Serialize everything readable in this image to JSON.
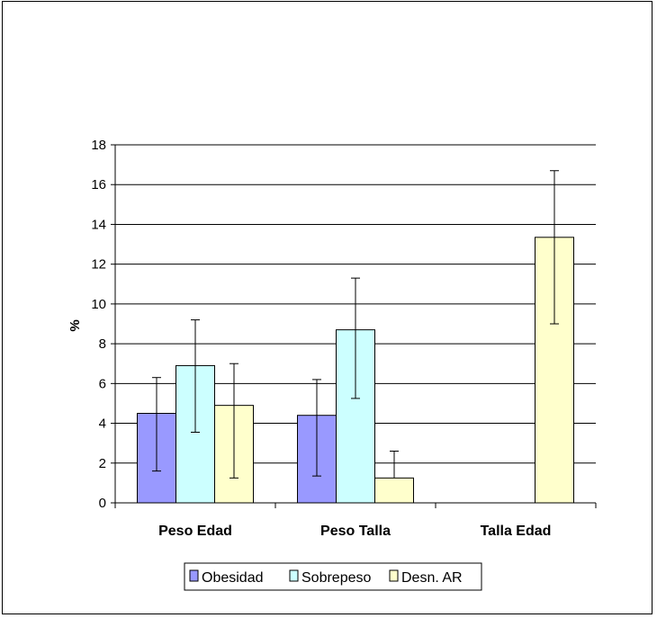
{
  "chart_data": {
    "type": "bar",
    "title": "",
    "xlabel": "",
    "ylabel": "%",
    "ylim": [
      0,
      18
    ],
    "yticks": [
      0,
      2,
      4,
      6,
      8,
      10,
      12,
      14,
      16,
      18
    ],
    "grid": true,
    "legend_position": "bottom",
    "categories": [
      "Peso Edad",
      "Peso Talla",
      "Talla Edad"
    ],
    "series": [
      {
        "name": "Obesidad",
        "color": "#9999ff",
        "values": [
          4.5,
          4.4,
          null
        ],
        "err_low": [
          1.6,
          1.35,
          null
        ],
        "err_high": [
          6.3,
          6.2,
          null
        ]
      },
      {
        "name": "Sobrepeso",
        "color": "#ccffff",
        "values": [
          6.9,
          8.7,
          null
        ],
        "err_low": [
          3.55,
          5.25,
          null
        ],
        "err_high": [
          9.2,
          11.3,
          null
        ]
      },
      {
        "name": "Desn. AR",
        "color": "#ffffcc",
        "values": [
          4.9,
          1.25,
          13.35
        ],
        "err_low": [
          1.25,
          null,
          9.0
        ],
        "err_high": [
          7.0,
          2.6,
          16.7
        ]
      }
    ]
  }
}
